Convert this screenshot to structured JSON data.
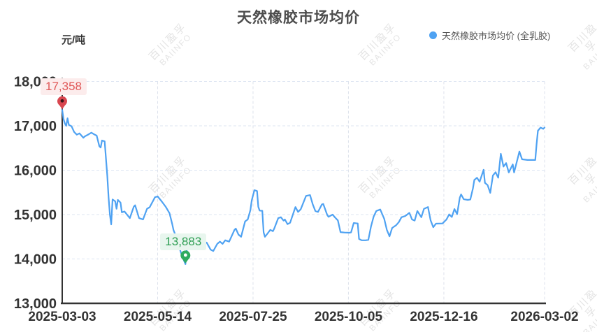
{
  "title": "天然橡胶市场均价",
  "y_axis_unit": "元/吨",
  "legend": {
    "label": "天然橡胶市场均价 (全乳胶)",
    "color": "#4fa2f2"
  },
  "watermark": {
    "line1": "百川盈孚",
    "line2": "BAIINFO"
  },
  "annotations": {
    "max": {
      "label": "17,358",
      "value": 17358,
      "day": 0
    },
    "min": {
      "label": "13,883",
      "value": 13883,
      "day": 93
    }
  },
  "colors": {
    "line": "#4fa2f2",
    "axis": "#333333",
    "grid_h": "#dce4f2",
    "grid_v": "#dde2ec",
    "max_pin": "#d9464f",
    "max_pin_dot": "#3a1518",
    "min_pin": "#2eab60",
    "min_pin_dot": "#ffffff"
  },
  "chart_data": {
    "type": "line",
    "title": "天然橡胶市场均价",
    "series_name": "天然橡胶市场均价 (全乳胶)",
    "ylabel": "元/吨",
    "ylim": [
      13000,
      18000
    ],
    "y_ticks": [
      18000,
      17000,
      16000,
      15000,
      14000,
      13000
    ],
    "y_tick_labels": [
      "18,000",
      "17,000",
      "16,000",
      "15,000",
      "14,000",
      "13,000"
    ],
    "x_tick_labels": [
      "2025-03-03",
      "2025-05-14",
      "2025-07-25",
      "2025-10-05",
      "2025-12-16",
      "2026-03-02"
    ],
    "x_tick_days": [
      0,
      72,
      144,
      216,
      288,
      364
    ],
    "x_unit": "days since 2025-03-03",
    "grid": true,
    "legend_position": "top-right",
    "max_point": {
      "day": 0,
      "value": 17358
    },
    "min_point": {
      "day": 93,
      "value": 13883
    },
    "points": [
      [
        0,
        17358
      ],
      [
        1,
        17150
      ],
      [
        2,
        17050
      ],
      [
        3,
        17000
      ],
      [
        4,
        17170
      ],
      [
        5,
        17020
      ],
      [
        7,
        16990
      ],
      [
        9,
        16860
      ],
      [
        11,
        16800
      ],
      [
        13,
        16830
      ],
      [
        16,
        16730
      ],
      [
        17,
        16760
      ],
      [
        20,
        16810
      ],
      [
        22,
        16845
      ],
      [
        24,
        16810
      ],
      [
        26,
        16780
      ],
      [
        28,
        16540
      ],
      [
        29,
        16510
      ],
      [
        30,
        16670
      ],
      [
        32,
        16650
      ],
      [
        33,
        16260
      ],
      [
        34,
        15870
      ],
      [
        35,
        15390
      ],
      [
        36,
        15000
      ],
      [
        37,
        14780
      ],
      [
        38,
        15340
      ],
      [
        40,
        15300
      ],
      [
        41,
        15130
      ],
      [
        42,
        15330
      ],
      [
        44,
        15270
      ],
      [
        45,
        15050
      ],
      [
        47,
        15070
      ],
      [
        51,
        14920
      ],
      [
        54,
        15180
      ],
      [
        55,
        15210
      ],
      [
        58,
        14920
      ],
      [
        61,
        14890
      ],
      [
        64,
        15130
      ],
      [
        66,
        15165
      ],
      [
        70,
        15390
      ],
      [
        72,
        15410
      ],
      [
        75,
        15300
      ],
      [
        78,
        15180
      ],
      [
        81,
        15030
      ],
      [
        83,
        14790
      ],
      [
        84,
        14650
      ],
      [
        86,
        14500
      ],
      [
        88,
        14300
      ],
      [
        90,
        14100
      ],
      [
        93,
        13883
      ],
      [
        94,
        14200
      ],
      [
        97,
        14465
      ],
      [
        98,
        14300
      ],
      [
        101,
        14320
      ],
      [
        105,
        14350
      ],
      [
        109,
        14370
      ],
      [
        112,
        14210
      ],
      [
        114,
        14180
      ],
      [
        117,
        14340
      ],
      [
        119,
        14390
      ],
      [
        121,
        14340
      ],
      [
        123,
        14420
      ],
      [
        126,
        14390
      ],
      [
        130,
        14655
      ],
      [
        131,
        14685
      ],
      [
        133,
        14550
      ],
      [
        135,
        14500
      ],
      [
        138,
        14845
      ],
      [
        140,
        14890
      ],
      [
        142,
        15100
      ],
      [
        143,
        15320
      ],
      [
        145,
        15550
      ],
      [
        147,
        15530
      ],
      [
        148,
        15175
      ],
      [
        149,
        15090
      ],
      [
        151,
        15085
      ],
      [
        152,
        14600
      ],
      [
        153,
        14500
      ],
      [
        155,
        14575
      ],
      [
        157,
        14655
      ],
      [
        159,
        14625
      ],
      [
        160,
        14685
      ],
      [
        163,
        14920
      ],
      [
        165,
        14940
      ],
      [
        167,
        14865
      ],
      [
        168,
        14890
      ],
      [
        170,
        14785
      ],
      [
        172,
        14815
      ],
      [
        175,
        15080
      ],
      [
        176,
        15170
      ],
      [
        178,
        15060
      ],
      [
        180,
        15120
      ],
      [
        184,
        15420
      ],
      [
        187,
        15440
      ],
      [
        189,
        15235
      ],
      [
        191,
        15080
      ],
      [
        193,
        15060
      ],
      [
        196,
        15230
      ],
      [
        197,
        15240
      ],
      [
        200,
        14990
      ],
      [
        201,
        14950
      ],
      [
        204,
        15000
      ],
      [
        206,
        14930
      ],
      [
        208,
        14870
      ],
      [
        210,
        14605
      ],
      [
        213,
        14595
      ],
      [
        217,
        14590
      ],
      [
        218,
        14600
      ],
      [
        220,
        14810
      ],
      [
        223,
        14800
      ],
      [
        224,
        14450
      ],
      [
        226,
        14420
      ],
      [
        229,
        14420
      ],
      [
        231,
        14430
      ],
      [
        233,
        14730
      ],
      [
        235,
        14955
      ],
      [
        237,
        15080
      ],
      [
        240,
        15115
      ],
      [
        243,
        14905
      ],
      [
        245,
        14655
      ],
      [
        247,
        14510
      ],
      [
        249,
        14700
      ],
      [
        252,
        14760
      ],
      [
        254,
        14830
      ],
      [
        256,
        14940
      ],
      [
        259,
        14970
      ],
      [
        262,
        15040
      ],
      [
        264,
        14890
      ],
      [
        266,
        14865
      ],
      [
        268,
        15080
      ],
      [
        271,
        14940
      ],
      [
        273,
        15130
      ],
      [
        276,
        15170
      ],
      [
        278,
        14870
      ],
      [
        280,
        14715
      ],
      [
        282,
        14795
      ],
      [
        287,
        14800
      ],
      [
        290,
        14890
      ],
      [
        292,
        15005
      ],
      [
        294,
        14945
      ],
      [
        296,
        15125
      ],
      [
        298,
        15010
      ],
      [
        300,
        15380
      ],
      [
        301,
        15455
      ],
      [
        303,
        15345
      ],
      [
        306,
        15330
      ],
      [
        308,
        15340
      ],
      [
        310,
        15595
      ],
      [
        311,
        15780
      ],
      [
        313,
        15830
      ],
      [
        315,
        15740
      ],
      [
        318,
        16010
      ],
      [
        319,
        15715
      ],
      [
        321,
        15665
      ],
      [
        323,
        15490
      ],
      [
        325,
        15880
      ],
      [
        327,
        15955
      ],
      [
        329,
        15830
      ],
      [
        331,
        16370
      ],
      [
        333,
        16080
      ],
      [
        335,
        16160
      ],
      [
        337,
        15950
      ],
      [
        340,
        16130
      ],
      [
        341,
        15950
      ],
      [
        344,
        16300
      ],
      [
        345,
        16420
      ],
      [
        347,
        16245
      ],
      [
        351,
        16230
      ],
      [
        357,
        16230
      ],
      [
        358,
        16590
      ],
      [
        359,
        16890
      ],
      [
        361,
        16960
      ],
      [
        363,
        16930
      ],
      [
        364,
        16960
      ]
    ]
  }
}
